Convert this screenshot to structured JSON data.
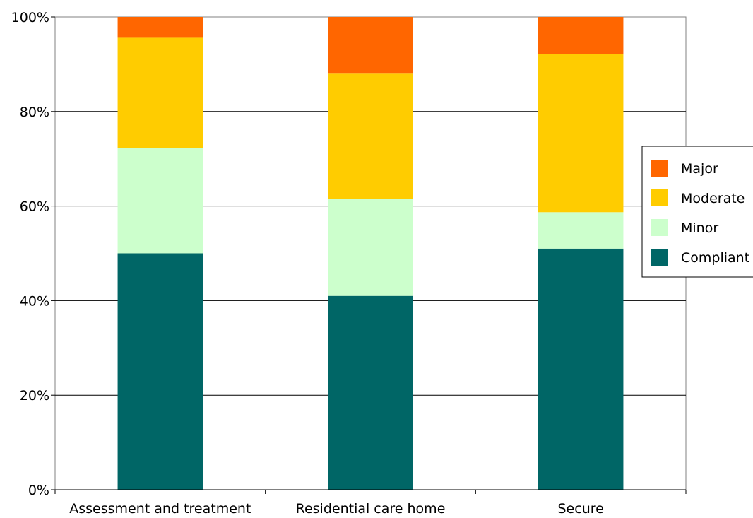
{
  "chart_data": {
    "type": "bar",
    "stacked": true,
    "percent": true,
    "categories": [
      "Assessment and treatment",
      "Residential care home",
      "Secure"
    ],
    "series": [
      {
        "name": "Compliant",
        "color": "#006666",
        "values": [
          50.0,
          41.0,
          51.0
        ]
      },
      {
        "name": "Minor",
        "color": "#ccffcc",
        "values": [
          22.2,
          20.5,
          7.7
        ]
      },
      {
        "name": "Moderate",
        "color": "#ffcc00",
        "values": [
          23.4,
          26.5,
          33.5
        ]
      },
      {
        "name": "Major",
        "color": "#ff6600",
        "values": [
          4.4,
          12.0,
          7.8
        ]
      }
    ],
    "ylim": [
      0,
      100
    ],
    "yticks": [
      "0%",
      "20%",
      "40%",
      "60%",
      "80%",
      "100%"
    ],
    "grid": true,
    "legend": {
      "placement": "right",
      "order": [
        "Major",
        "Moderate",
        "Minor",
        "Compliant"
      ]
    },
    "xlabel": "",
    "ylabel": "",
    "title": ""
  }
}
